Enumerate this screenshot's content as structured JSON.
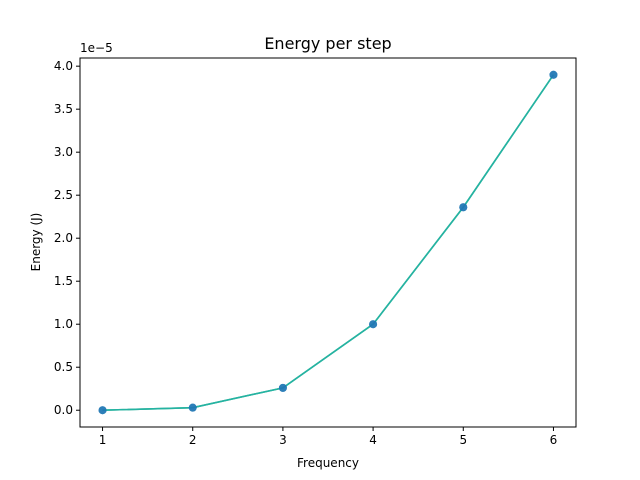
{
  "chart_data": {
    "type": "line",
    "title": "Energy per step",
    "xlabel": "Frequency",
    "ylabel": "Energy (J)",
    "y_offset_label": "1e−5",
    "x": [
      1,
      2,
      3,
      4,
      5,
      6
    ],
    "series": [
      {
        "values": [
          0.0,
          0.03,
          0.26,
          1.0,
          2.36,
          3.9
        ],
        "color": "#3cb0b8",
        "marker_color": "#1f77b4"
      },
      {
        "values": [
          0.0,
          0.03,
          0.26,
          1.0,
          2.36,
          3.9
        ],
        "color": "#2ca02c",
        "marker_color": "#1f77b4"
      },
      {
        "values": [
          0.0,
          0.03,
          0.26,
          1.0,
          2.36,
          3.9
        ],
        "color": "#17becf",
        "marker_color": "#1f77b4"
      }
    ],
    "xlim": [
      0.75,
      6.25
    ],
    "ylim": [
      -0.195,
      4.095
    ],
    "xticks": [
      1,
      2,
      3,
      4,
      5,
      6
    ],
    "xtick_labels": [
      "1",
      "2",
      "3",
      "4",
      "5",
      "6"
    ],
    "yticks": [
      0.0,
      0.5,
      1.0,
      1.5,
      2.0,
      2.5,
      3.0,
      3.5,
      4.0
    ],
    "ytick_labels": [
      "0.0",
      "0.5",
      "1.0",
      "1.5",
      "2.0",
      "2.5",
      "3.0",
      "3.5",
      "4.0"
    ],
    "grid": false,
    "legend": "none"
  }
}
